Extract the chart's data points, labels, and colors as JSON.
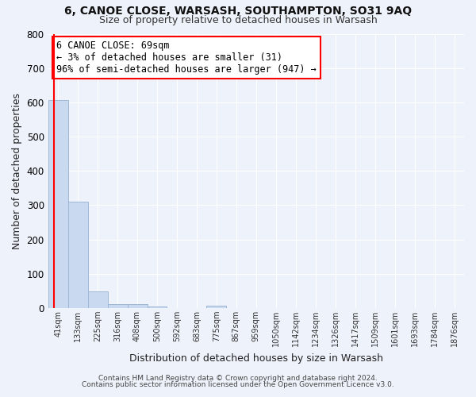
{
  "title1": "6, CANOE CLOSE, WARSASH, SOUTHAMPTON, SO31 9AQ",
  "title2": "Size of property relative to detached houses in Warsash",
  "xlabel": "Distribution of detached houses by size in Warsash",
  "ylabel": "Number of detached properties",
  "bar_labels": [
    "41sqm",
    "133sqm",
    "225sqm",
    "316sqm",
    "408sqm",
    "500sqm",
    "592sqm",
    "683sqm",
    "775sqm",
    "867sqm",
    "959sqm",
    "1050sqm",
    "1142sqm",
    "1234sqm",
    "1326sqm",
    "1417sqm",
    "1509sqm",
    "1601sqm",
    "1693sqm",
    "1784sqm",
    "1876sqm"
  ],
  "bar_values": [
    606,
    311,
    48,
    11,
    12,
    5,
    0,
    0,
    7,
    0,
    0,
    0,
    0,
    0,
    0,
    0,
    0,
    0,
    0,
    0,
    0
  ],
  "bar_color": "#c9daf0",
  "bar_edge_color": "#a0b8d8",
  "property_line_color": "red",
  "ylim": [
    0,
    800
  ],
  "yticks": [
    0,
    100,
    200,
    300,
    400,
    500,
    600,
    700,
    800
  ],
  "annotation_title": "6 CANOE CLOSE: 69sqm",
  "annotation_line1": "← 3% of detached houses are smaller (31)",
  "annotation_line2": "96% of semi-detached houses are larger (947) →",
  "footer1": "Contains HM Land Registry data © Crown copyright and database right 2024.",
  "footer2": "Contains public sector information licensed under the Open Government Licence v3.0.",
  "background_color": "#eef2fb",
  "grid_color": "#ffffff",
  "box_edge_color": "red"
}
